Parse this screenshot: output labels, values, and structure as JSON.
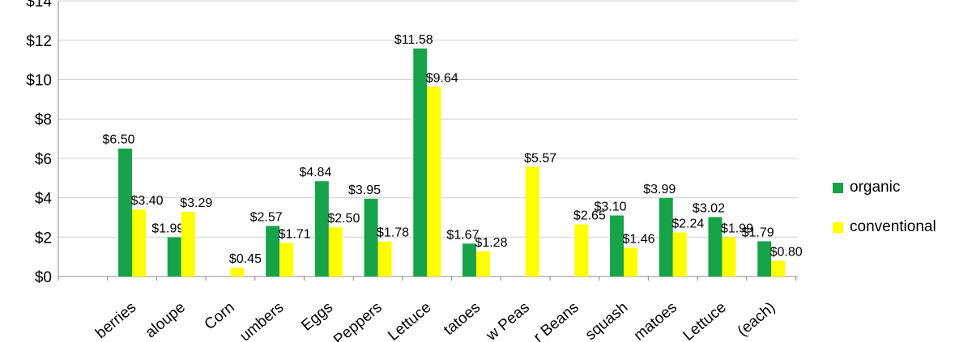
{
  "chart_data": {
    "type": "bar",
    "title": "",
    "xlabel": "",
    "ylabel": "",
    "ylim": [
      0,
      14
    ],
    "yticks": [
      "$0",
      "$2",
      "$4",
      "$6",
      "$8",
      "$10",
      "$12",
      "$14"
    ],
    "categories": [
      "berries",
      "aloupe",
      "Corn",
      "umbers",
      "Eggs",
      "Peppers",
      "Lettuce",
      "tatoes",
      "w Peas",
      "r Beans",
      "squash",
      "matoes",
      "Lettuce",
      "(each)"
    ],
    "series": [
      {
        "name": "organic",
        "color": "#17a34a",
        "values": [
          6.5,
          1.99,
          null,
          2.57,
          4.84,
          3.95,
          11.58,
          1.67,
          null,
          null,
          3.1,
          3.99,
          3.02,
          1.79
        ]
      },
      {
        "name": "conventional",
        "color": "#ffff00",
        "values": [
          3.4,
          3.29,
          0.45,
          1.71,
          2.5,
          1.78,
          9.64,
          1.28,
          5.57,
          2.65,
          1.46,
          2.24,
          1.99,
          0.8
        ]
      }
    ],
    "grid": true,
    "legend_position": "right"
  }
}
